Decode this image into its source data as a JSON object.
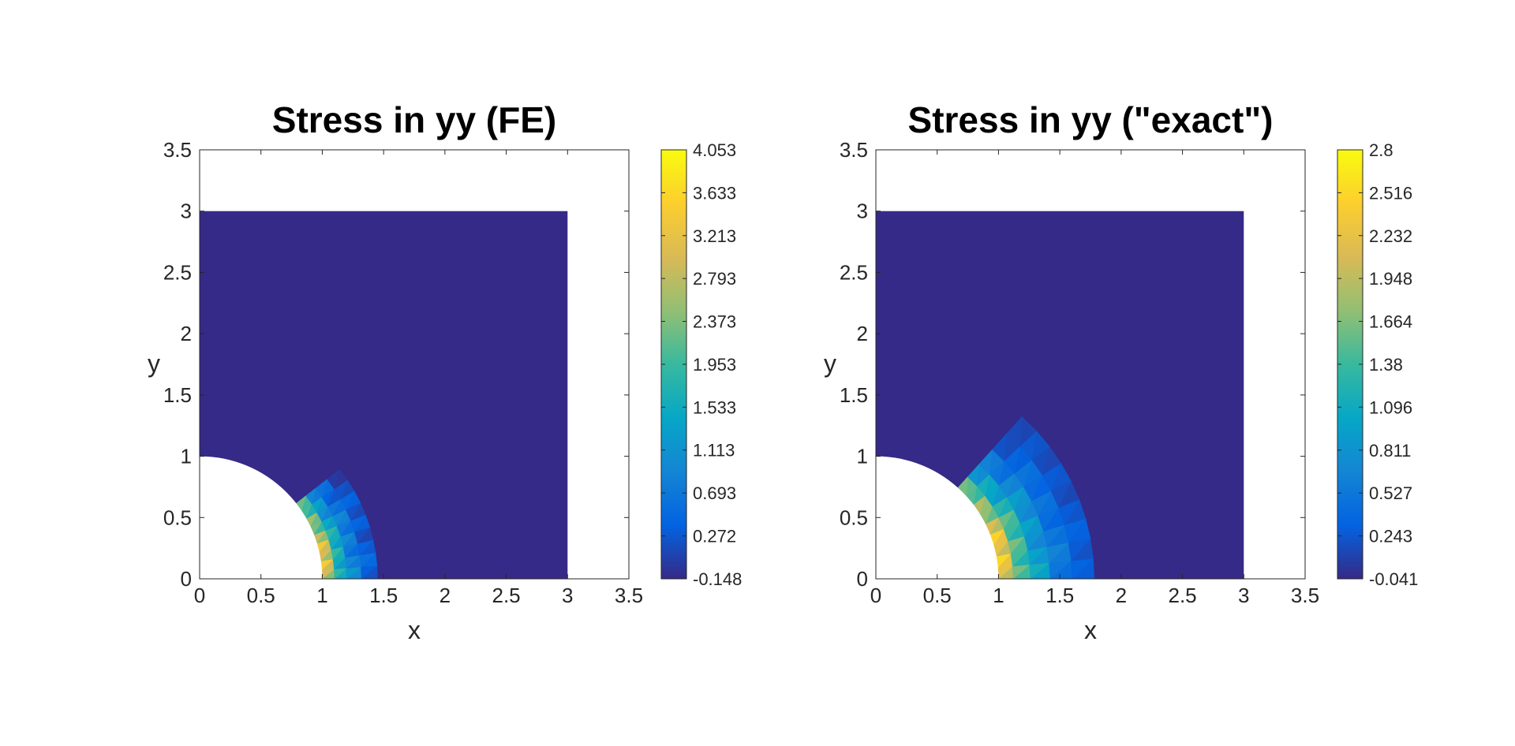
{
  "chart_data": [
    {
      "type": "heatmap",
      "title": "Stress in yy (FE)",
      "xlabel": "x",
      "ylabel": "y",
      "xlim": [
        0,
        3.5
      ],
      "ylim": [
        0,
        3.5
      ],
      "x_ticks": [
        "0",
        "0.5",
        "1",
        "1.5",
        "2",
        "2.5",
        "3",
        "3.5"
      ],
      "y_ticks": [
        "0",
        "0.5",
        "1",
        "1.5",
        "2",
        "2.5",
        "3",
        "3.5"
      ],
      "domain": {
        "x_range": [
          0,
          3
        ],
        "y_range": [
          0,
          3
        ],
        "hole_radius": 1
      },
      "background_value": -0.148,
      "hotspot": {
        "x_range": [
          1.0,
          1.5
        ],
        "y_range": [
          0,
          0.6
        ],
        "max_value": 4.053
      },
      "colorbar": {
        "min": -0.148,
        "max": 4.053,
        "tick_labels": [
          "-0.148",
          "0.272",
          "0.693",
          "1.113",
          "1.533",
          "1.953",
          "2.373",
          "2.793",
          "3.213",
          "3.633",
          "4.053"
        ]
      }
    },
    {
      "type": "heatmap",
      "title": "Stress in yy (\"exact\")",
      "xlabel": "x",
      "ylabel": "y",
      "xlim": [
        0,
        3.5
      ],
      "ylim": [
        0,
        3.5
      ],
      "x_ticks": [
        "0",
        "0.5",
        "1",
        "1.5",
        "2",
        "2.5",
        "3",
        "3.5"
      ],
      "y_ticks": [
        "0",
        "0.5",
        "1",
        "1.5",
        "2",
        "2.5",
        "3",
        "3.5"
      ],
      "domain": {
        "x_range": [
          0,
          3
        ],
        "y_range": [
          0,
          3
        ],
        "hole_radius": 1
      },
      "background_value": -0.041,
      "hotspot": {
        "x_range": [
          0.9,
          1.7
        ],
        "y_range": [
          0,
          0.8
        ],
        "max_value": 2.8
      },
      "colorbar": {
        "min": -0.041,
        "max": 2.8,
        "tick_labels": [
          "-0.041",
          "0.243",
          "0.527",
          "0.811",
          "1.096",
          "1.38",
          "1.664",
          "1.948",
          "2.232",
          "2.516",
          "2.8"
        ]
      }
    }
  ],
  "colors": {
    "colormap": [
      "#352a87",
      "#0363e1",
      "#1485d4",
      "#06a7c6",
      "#38b99e",
      "#92bf73",
      "#d9ba56",
      "#fcce2e",
      "#f9fb0e"
    ],
    "axis": "#262626",
    "title": "#000000",
    "hole": "#ffffff"
  }
}
